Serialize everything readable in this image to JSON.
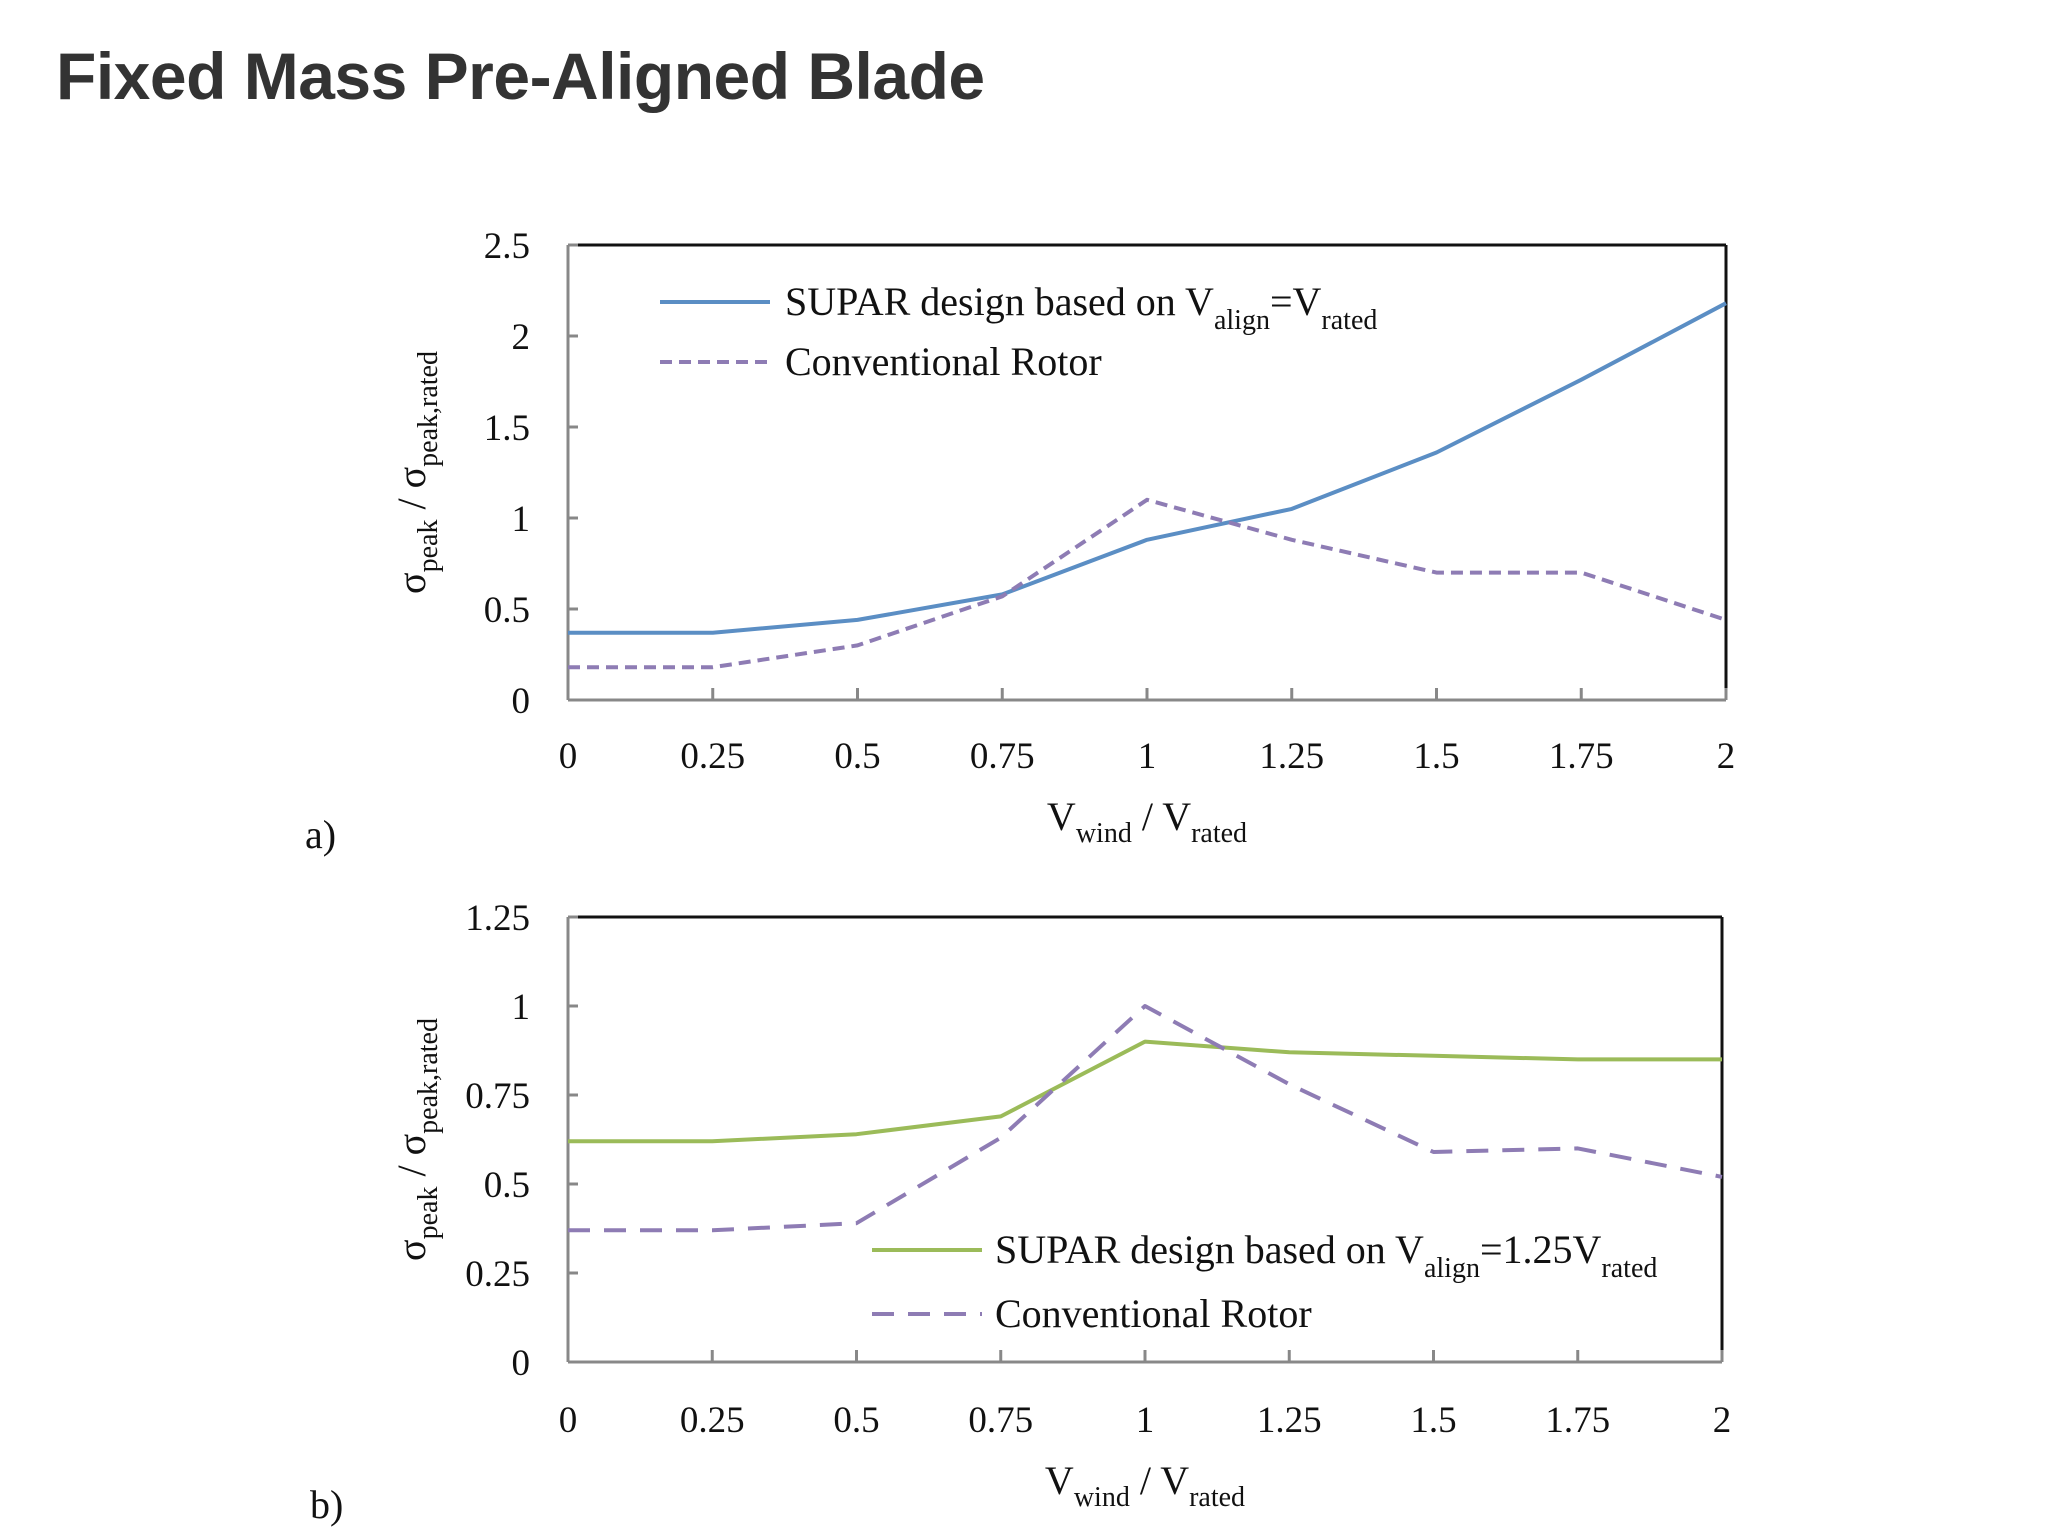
{
  "slide": {
    "title": "Fixed Mass Pre-Aligned Blade"
  },
  "colors": {
    "supar_a": "#5b8ec4",
    "supar_b": "#9bbb59",
    "conventional": "#8e7cb4",
    "axis": "#111111"
  },
  "chart_data": [
    {
      "panel_label": "a)",
      "type": "line",
      "x": [
        0,
        0.25,
        0.5,
        0.75,
        1,
        1.25,
        1.5,
        1.75,
        2
      ],
      "xlim": [
        0,
        2
      ],
      "ylim": [
        0,
        2.5
      ],
      "xticks": [
        "0",
        "0.25",
        "0.5",
        "0.75",
        "1",
        "1.25",
        "1.5",
        "1.75",
        "2"
      ],
      "yticks": [
        "0",
        "0.5",
        "1",
        "1.5",
        "2",
        "2.5"
      ],
      "xlabel": {
        "main": "V",
        "sub": "wind",
        "sep": " / ",
        "main2": "V",
        "sub2": "rated"
      },
      "ylabel": {
        "main": "σ",
        "sub": "peak",
        "sep": " / ",
        "main2": "σ",
        "sub2": "peak,rated"
      },
      "grid": false,
      "legend_position": "top-left",
      "series": [
        {
          "legend": {
            "text": "SUPAR design based on V",
            "sub": "align",
            "mid": "=V",
            "sub2": "rated"
          },
          "style": "solid",
          "color": "#5b8ec4",
          "values": [
            0.37,
            0.37,
            0.44,
            0.58,
            0.88,
            1.05,
            1.36,
            1.76,
            2.18
          ]
        },
        {
          "legend": {
            "text": "Conventional Rotor",
            "sub": "",
            "mid": "",
            "sub2": ""
          },
          "style": "dashed",
          "color": "#8e7cb4",
          "values": [
            0.18,
            0.18,
            0.3,
            0.57,
            1.1,
            0.88,
            0.7,
            0.7,
            0.44
          ]
        }
      ]
    },
    {
      "panel_label": "b)",
      "type": "line",
      "x": [
        0,
        0.25,
        0.5,
        0.75,
        1,
        1.25,
        1.5,
        1.75,
        2
      ],
      "xlim": [
        0,
        2
      ],
      "ylim": [
        0,
        1.25
      ],
      "xticks": [
        "0",
        "0.25",
        "0.5",
        "0.75",
        "1",
        "1.25",
        "1.5",
        "1.75",
        "2"
      ],
      "yticks": [
        "0",
        "0.25",
        "0.5",
        "0.75",
        "1",
        "1.25"
      ],
      "xlabel": {
        "main": "V",
        "sub": "wind",
        "sep": " / ",
        "main2": "V",
        "sub2": "rated"
      },
      "ylabel": {
        "main": "σ",
        "sub": "peak",
        "sep": " / ",
        "main2": "σ",
        "sub2": "peak,rated"
      },
      "grid": false,
      "legend_position": "bottom-center",
      "series": [
        {
          "legend": {
            "text": "SUPAR design based on V",
            "sub": "align",
            "mid": "=1.25V",
            "sub2": "rated"
          },
          "style": "solid",
          "color": "#9bbb59",
          "values": [
            0.62,
            0.62,
            0.64,
            0.69,
            0.9,
            0.87,
            0.86,
            0.85,
            0.85
          ]
        },
        {
          "legend": {
            "text": "Conventional Rotor",
            "sub": "",
            "mid": "",
            "sub2": ""
          },
          "style": "dashed",
          "color": "#8e7cb4",
          "values": [
            0.37,
            0.37,
            0.39,
            0.63,
            1.0,
            0.78,
            0.59,
            0.6,
            0.52
          ]
        }
      ]
    }
  ]
}
